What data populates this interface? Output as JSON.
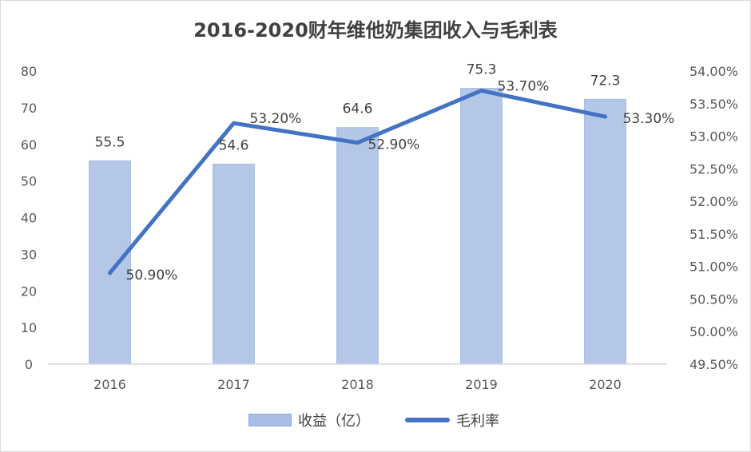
{
  "chart_data": {
    "type": "bar+line",
    "title": "2016-2020财年维他奶集团收入与毛利表",
    "categories": [
      "2016",
      "2017",
      "2018",
      "2019",
      "2020"
    ],
    "series": [
      {
        "name": "收益（亿）",
        "type": "bar",
        "axis": "left",
        "values": [
          55.5,
          54.6,
          64.6,
          75.3,
          72.3
        ],
        "labels": [
          "55.5",
          "54.6",
          "64.6",
          "75.3",
          "72.3"
        ]
      },
      {
        "name": "毛利率",
        "type": "line",
        "axis": "right",
        "values": [
          50.9,
          53.2,
          52.9,
          53.7,
          53.3
        ],
        "labels": [
          "50.90%",
          "53.20%",
          "52.90%",
          "53.70%",
          "53.30%"
        ]
      }
    ],
    "y_left": {
      "min": 0,
      "max": 80,
      "ticks": [
        "0",
        "10",
        "20",
        "30",
        "40",
        "50",
        "60",
        "70",
        "80"
      ]
    },
    "y_right": {
      "min": 49.5,
      "max": 54.0,
      "ticks": [
        "49.50%",
        "50.00%",
        "50.50%",
        "51.00%",
        "51.50%",
        "52.00%",
        "52.50%",
        "53.00%",
        "53.50%",
        "54.00%"
      ]
    },
    "grid": false,
    "legend_position": "bottom"
  },
  "colors": {
    "bar_fill": "#b4c7e7",
    "bar_edge": "#a9bde6",
    "line": "#4472c4",
    "axis": "#d9d9d9"
  }
}
